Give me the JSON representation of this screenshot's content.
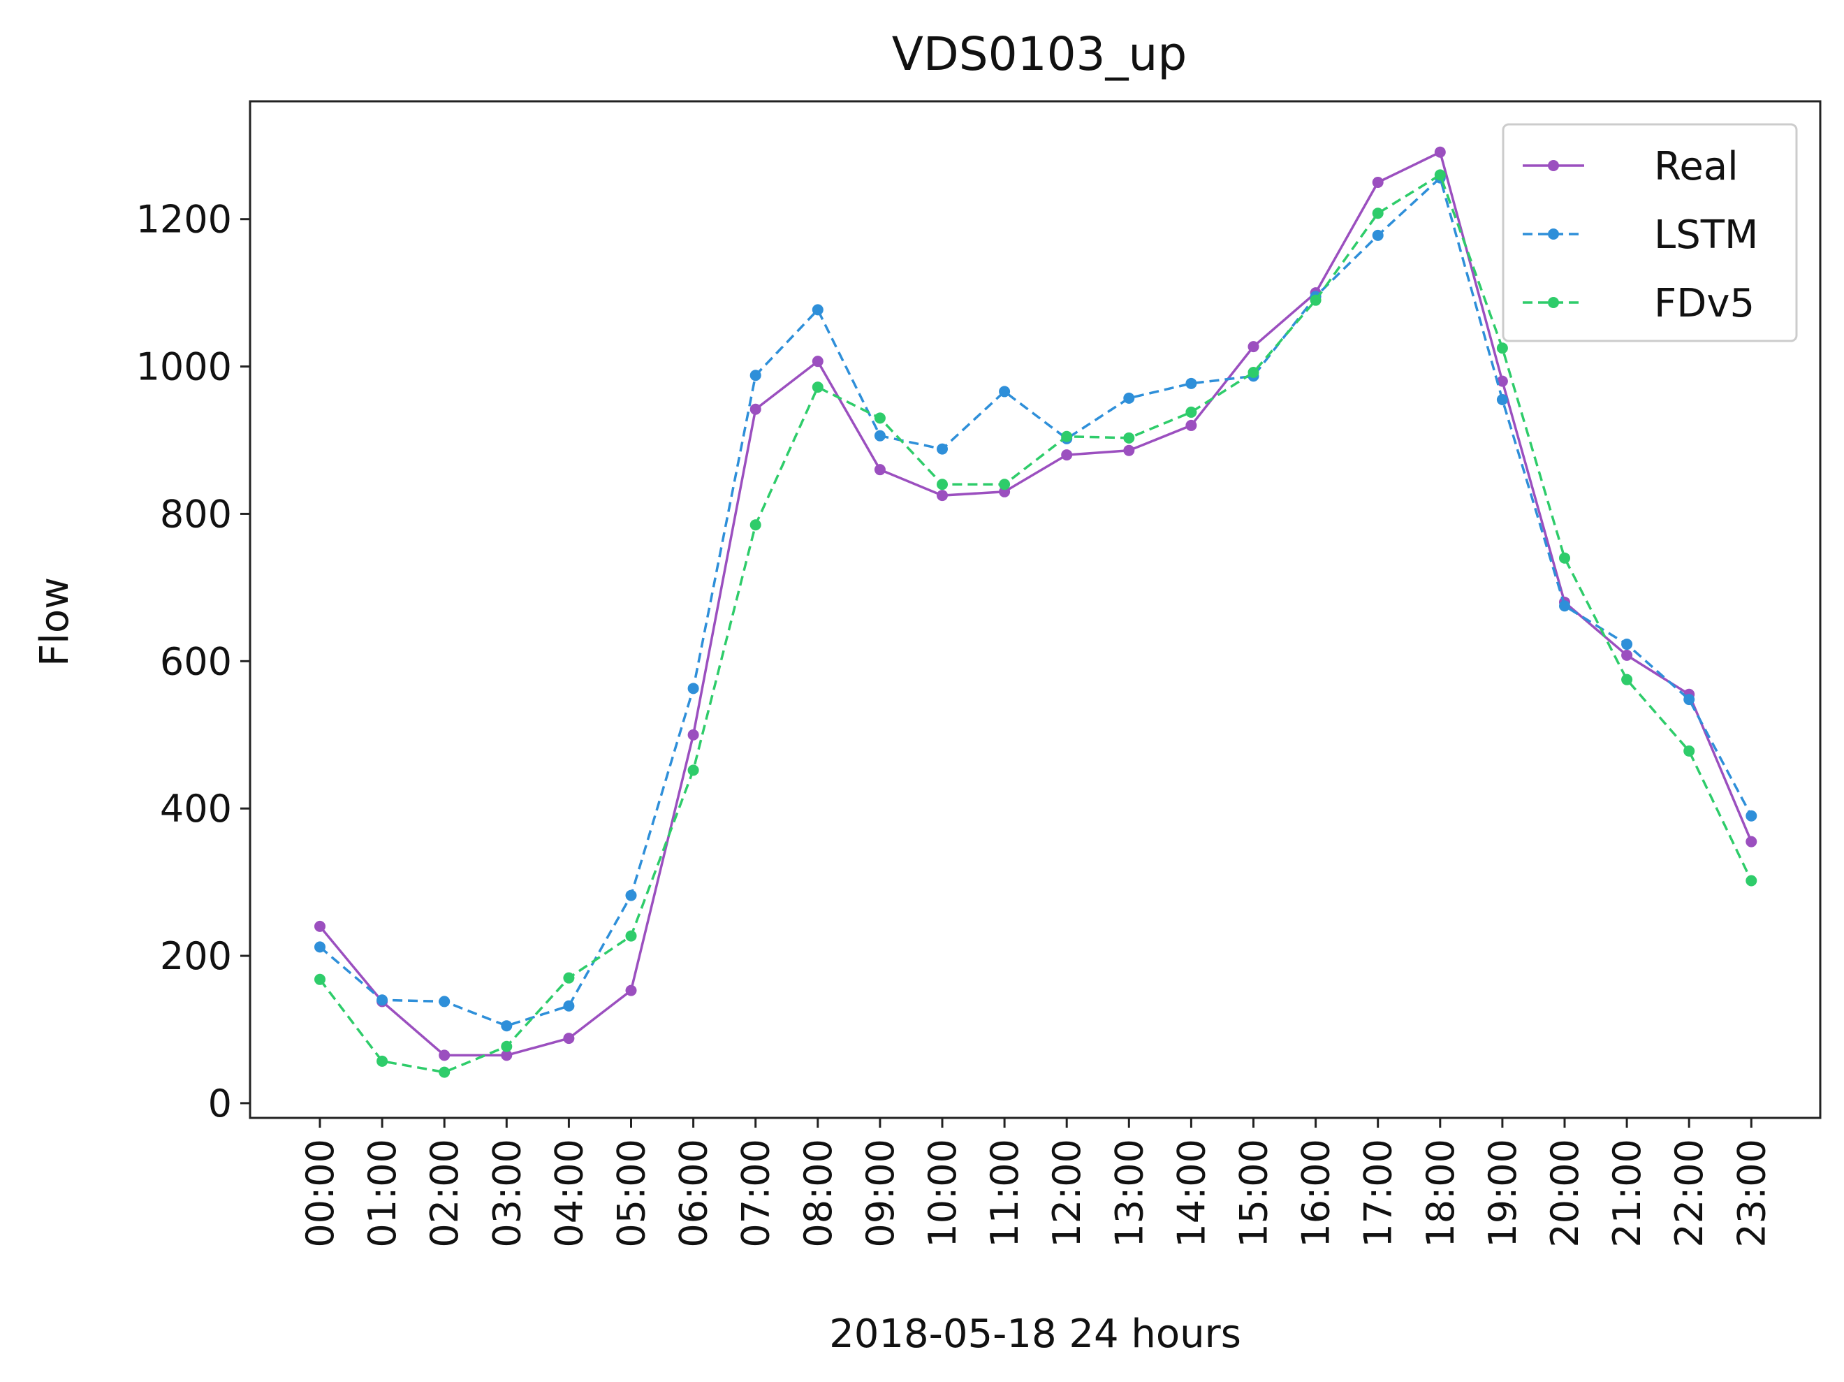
{
  "chart_data": {
    "type": "line",
    "title": "VDS0103_up",
    "xlabel": "2018-05-18 24 hours",
    "ylabel": "Flow",
    "categories": [
      "00:00",
      "01:00",
      "02:00",
      "03:00",
      "04:00",
      "05:00",
      "06:00",
      "07:00",
      "08:00",
      "09:00",
      "10:00",
      "11:00",
      "12:00",
      "13:00",
      "14:00",
      "15:00",
      "16:00",
      "17:00",
      "18:00",
      "19:00",
      "20:00",
      "21:00",
      "22:00",
      "23:00"
    ],
    "yticks": [
      0,
      200,
      400,
      600,
      800,
      1000,
      1200
    ],
    "ylim": [
      -20,
      1360
    ],
    "grid": false,
    "legend": "top-right",
    "series": [
      {
        "name": "Real",
        "color": "#9b4fbf",
        "style": "solid",
        "values": [
          240,
          138,
          65,
          65,
          88,
          153,
          500,
          942,
          1007,
          860,
          825,
          830,
          880,
          886,
          920,
          1027,
          1100,
          1250,
          1291,
          980,
          680,
          608,
          555,
          355
        ]
      },
      {
        "name": "LSTM",
        "color": "#2e8fd9",
        "style": "dashed",
        "values": [
          212,
          140,
          138,
          105,
          132,
          282,
          563,
          988,
          1077,
          906,
          888,
          966,
          902,
          957,
          977,
          987,
          1095,
          1178,
          1256,
          955,
          675,
          623,
          548,
          390
        ]
      },
      {
        "name": "FDv5",
        "color": "#2ecc6a",
        "style": "dashed",
        "values": [
          168,
          57,
          42,
          77,
          170,
          227,
          452,
          785,
          972,
          930,
          840,
          840,
          905,
          903,
          938,
          992,
          1090,
          1208,
          1260,
          1025,
          740,
          575,
          478,
          302
        ]
      }
    ]
  }
}
